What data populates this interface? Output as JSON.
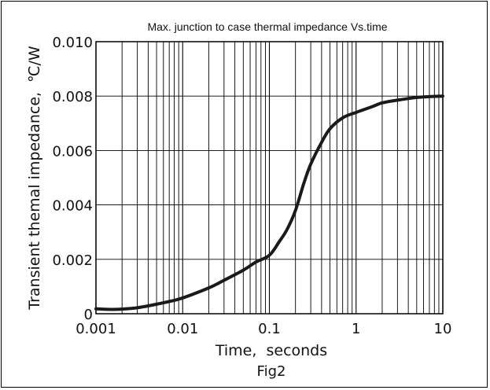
{
  "chart_data": {
    "type": "line",
    "title": "Max. junction to case thermal impedance Vs.time",
    "xlabel": "Time,  seconds",
    "ylabel": "Transient themal impedance,  ℃/W",
    "caption": "Fig2",
    "x_scale": "log",
    "xlim": [
      0.001,
      10
    ],
    "ylim": [
      0,
      0.01
    ],
    "x_ticks": [
      0.001,
      0.01,
      0.1,
      1,
      10
    ],
    "x_tick_labels": [
      "0.001",
      "0.01",
      "0.1",
      "1",
      "10"
    ],
    "y_ticks": [
      0,
      0.002,
      0.004,
      0.006,
      0.008,
      0.01
    ],
    "y_tick_labels": [
      "0",
      "0.002",
      "0.004",
      "0.006",
      "0.008",
      "0.010"
    ],
    "grid": true,
    "series": [
      {
        "color": "#1a1a1a",
        "x": [
          0.001,
          0.0015,
          0.002,
          0.003,
          0.005,
          0.007,
          0.01,
          0.02,
          0.03,
          0.05,
          0.07,
          0.1,
          0.13,
          0.16,
          0.2,
          0.25,
          0.3,
          0.4,
          0.5,
          0.7,
          1,
          1.5,
          2,
          3,
          5,
          7,
          10
        ],
        "y": [
          0.00018,
          0.00016,
          0.00017,
          0.00022,
          0.00035,
          0.00045,
          0.00058,
          0.00095,
          0.00123,
          0.0016,
          0.0019,
          0.00215,
          0.00265,
          0.0031,
          0.0038,
          0.0048,
          0.0055,
          0.0063,
          0.0068,
          0.0072,
          0.0074,
          0.0076,
          0.00775,
          0.00785,
          0.00795,
          0.00798,
          0.008
        ]
      }
    ]
  }
}
